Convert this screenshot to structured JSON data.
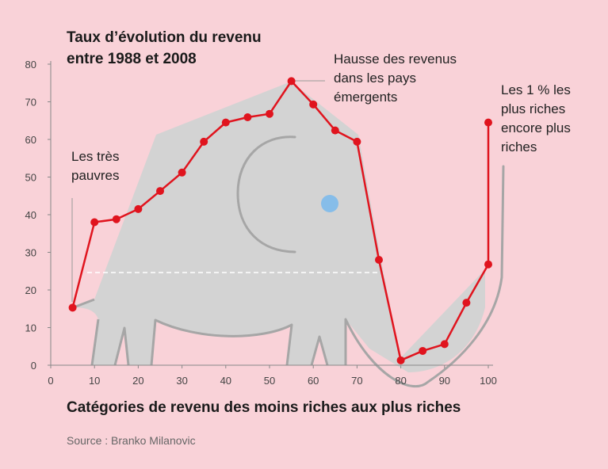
{
  "chart_data": {
    "type": "line",
    "title_lines": [
      "Taux d’évolution du revenu",
      "entre 1988 et 2008"
    ],
    "xlabel": "Catégories de revenu des moins riches aux plus riches",
    "source": "Source : Branko Milanovic",
    "xlim": [
      0,
      100
    ],
    "ylim": [
      0,
      80
    ],
    "xticks": [
      0,
      10,
      20,
      30,
      40,
      50,
      60,
      70,
      80,
      90,
      100
    ],
    "yticks": [
      0,
      10,
      20,
      30,
      40,
      50,
      60,
      70,
      80
    ],
    "grid": false,
    "series": [
      {
        "x": [
          5,
          10,
          15,
          20,
          25,
          30,
          35,
          40,
          45,
          50,
          55,
          60,
          65,
          70,
          75,
          80,
          85,
          90,
          95,
          100
        ],
        "y": [
          15.3,
          38,
          38.8,
          41.5,
          46.3,
          51.2,
          59.4,
          64.5,
          65.9,
          66.8,
          75.5,
          69.3,
          62.4,
          59.4,
          28,
          1.3,
          3.8,
          5.6,
          16.6,
          26.8
        ]
      }
    ],
    "extra_points": [
      {
        "x": 100,
        "y": 64.5
      }
    ],
    "annotations": {
      "poor": [
        "Les très",
        "pauvres"
      ],
      "emerging": [
        "Hausse des revenus",
        "dans les pays",
        "émergents"
      ],
      "richest": [
        "Les 1 % les",
        "plus riches",
        "encore plus",
        "riches"
      ]
    },
    "colors": {
      "background": "#f9d2d8",
      "line": "#e0141e",
      "elephant": "#d3d3d3",
      "elephant_outline": "#a6a6a6",
      "eye": "#86bde9",
      "axis": "#888888"
    }
  }
}
